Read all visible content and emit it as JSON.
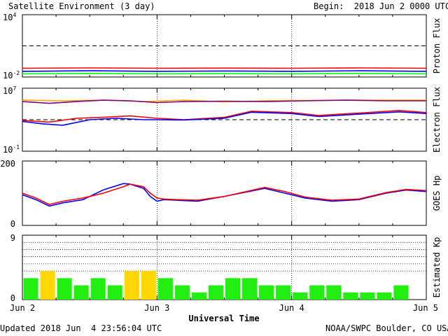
{
  "header": {
    "title": "Satellite Environment (3 day)",
    "begin": "Begin:  2018 Jun 2 0000 UTC"
  },
  "footer": {
    "updated": "Updated 2018 Jun  4 23:56:04 UTC",
    "credit": "NOAA/SWPC Boulder, CO USA"
  },
  "x_axis": {
    "title": "Universal Time",
    "ticks": [
      "Jun 2",
      "Jun 3",
      "Jun 4",
      "Jun 5"
    ]
  },
  "colors": {
    "red": "#ff0000",
    "blue": "#0000ff",
    "green": "#00ff00",
    "orange": "#ffa500",
    "purple": "#800080",
    "kp_green": "#22ee11",
    "kp_yellow": "#ffd700"
  },
  "chart_data": [
    {
      "type": "line",
      "ylabel": "Proton Flux",
      "scale": "log",
      "ylim": [
        0.01,
        10000
      ],
      "y_tick_labels": [
        {
          "base": "10",
          "exp": "4"
        },
        {
          "base": "10",
          "exp": "-2"
        }
      ],
      "x_range_days": [
        0,
        3
      ],
      "threshold": 10,
      "series": [
        {
          "color": "red",
          "x": [
            0,
            0.5,
            1,
            1.5,
            2,
            2.5,
            3
          ],
          "values": [
            0.07,
            0.075,
            0.07,
            0.072,
            0.07,
            0.075,
            0.07
          ]
        },
        {
          "color": "blue",
          "x": [
            0,
            0.5,
            1,
            1.5,
            2,
            2.5,
            3
          ],
          "values": [
            0.035,
            0.04,
            0.035,
            0.038,
            0.035,
            0.04,
            0.035
          ]
        },
        {
          "color": "green",
          "x": [
            0,
            0.5,
            1,
            1.5,
            2,
            2.5,
            3
          ],
          "values": [
            0.02,
            0.022,
            0.02,
            0.021,
            0.02,
            0.022,
            0.02
          ]
        }
      ]
    },
    {
      "type": "line",
      "ylabel": "Electron Flux",
      "scale": "log",
      "ylim": [
        0.1,
        10000000
      ],
      "y_tick_labels": [
        {
          "base": "10",
          "exp": "7"
        },
        {
          "base": "10",
          "exp": "-1"
        }
      ],
      "x_range_days": [
        0,
        3
      ],
      "threshold": 1000,
      "series": [
        {
          "color": "orange",
          "x": [
            0,
            0.3,
            0.6,
            0.9,
            1.2,
            1.5,
            1.8,
            2.1,
            2.4,
            2.7,
            3
          ],
          "values": [
            300000,
            250000,
            300000,
            200000,
            300000,
            180000,
            250000,
            280000,
            300000,
            300000,
            300000
          ]
        },
        {
          "color": "purple",
          "x": [
            0,
            0.2,
            0.4,
            0.6,
            0.8,
            1.0,
            1.2,
            1.5,
            1.8,
            2.1,
            2.4,
            2.7,
            3
          ],
          "values": [
            200000,
            120000,
            200000,
            300000,
            250000,
            150000,
            200000,
            220000,
            200000,
            250000,
            300000,
            250000,
            250000
          ]
        },
        {
          "color": "red",
          "x": [
            0,
            0.2,
            0.4,
            0.6,
            0.8,
            1.0,
            1.2,
            1.5,
            1.7,
            2.0,
            2.2,
            2.5,
            2.8,
            3
          ],
          "values": [
            800,
            500,
            1500,
            2000,
            3000,
            1500,
            1000,
            2000,
            12000,
            8000,
            3500,
            7000,
            15000,
            8000
          ]
        },
        {
          "color": "blue",
          "x": [
            0,
            0.15,
            0.3,
            0.5,
            0.7,
            0.9,
            1.0,
            1.2,
            1.5,
            1.7,
            2.0,
            2.2,
            2.5,
            2.8,
            3
          ],
          "values": [
            600,
            300,
            200,
            1000,
            1500,
            1000,
            1000,
            900,
            1500,
            9000,
            6000,
            2500,
            5000,
            10000,
            6000
          ]
        }
      ]
    },
    {
      "type": "line",
      "ylabel": "GOES Hp",
      "scale": "linear",
      "ylim": [
        0,
        200
      ],
      "y_tick_labels": [
        "200",
        "0"
      ],
      "x_range_days": [
        0,
        3
      ],
      "series": [
        {
          "color": "blue",
          "x": [
            0,
            0.1,
            0.2,
            0.3,
            0.45,
            0.6,
            0.75,
            0.8,
            0.9,
            0.95,
            1.0,
            1.05,
            1.15,
            1.3,
            1.5,
            1.8,
            1.95,
            2.1,
            2.3,
            2.5,
            2.7,
            2.85,
            3
          ],
          "values": [
            95,
            80,
            60,
            70,
            80,
            110,
            130,
            128,
            115,
            90,
            75,
            80,
            78,
            75,
            90,
            115,
            100,
            85,
            75,
            80,
            100,
            110,
            105
          ]
        },
        {
          "color": "red",
          "x": [
            0,
            0.1,
            0.2,
            0.3,
            0.45,
            0.6,
            0.75,
            0.8,
            0.9,
            0.95,
            1.0,
            1.05,
            1.15,
            1.3,
            1.5,
            1.8,
            1.95,
            2.1,
            2.3,
            2.5,
            2.7,
            2.85,
            3
          ],
          "values": [
            100,
            85,
            65,
            75,
            85,
            100,
            120,
            128,
            120,
            100,
            85,
            82,
            80,
            78,
            90,
            118,
            105,
            88,
            78,
            82,
            102,
            112,
            108
          ]
        }
      ]
    },
    {
      "type": "bar",
      "ylabel": "Estimated Kp",
      "ylim": [
        0,
        9
      ],
      "y_tick_labels": [
        "9",
        "0"
      ],
      "gridlines": [
        4,
        5,
        6,
        7,
        8
      ],
      "x_range_days": [
        0,
        3
      ],
      "bin_hours": 3,
      "values": [
        3,
        4,
        3,
        2,
        3,
        2,
        4,
        4,
        3,
        2,
        1,
        2,
        3,
        3,
        2,
        2,
        1,
        2,
        2,
        1,
        1,
        1,
        2,
        0
      ],
      "storm_threshold": 4
    }
  ]
}
